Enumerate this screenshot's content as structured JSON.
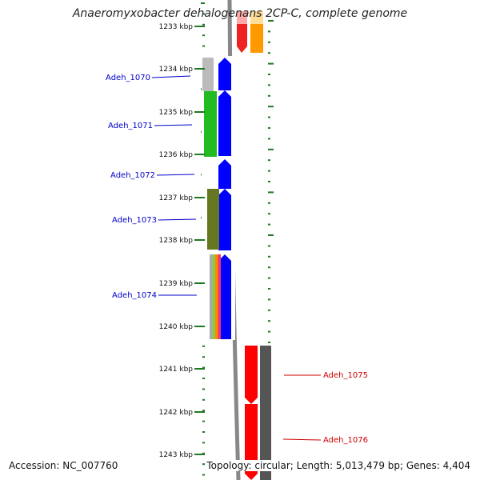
{
  "title": "Anaeromyxobacter dehalogenans 2CP-C, complete genome",
  "accession_text": "Accession: NC_007760",
  "summary_text": "Topology: circular; Length: 5,013,479 bp; Genes: 4,404",
  "kbp_ticks": [
    "1233 kbp",
    "1234 kbp",
    "1235 kbp",
    "1236 kbp",
    "1237 kbp",
    "1238 kbp",
    "1239 kbp",
    "1240 kbp",
    "1241 kbp",
    "1242 kbp",
    "1243 kbp"
  ],
  "colors": {
    "forward_label": "#0000cc",
    "reverse_label": "#cc0000",
    "tick": "#227722",
    "backbone": "#888888",
    "cds_forward": "#0000ff",
    "cds_reverse": "#ff0000"
  },
  "left_labels": [
    "Adeh_1070",
    "Adeh_1071",
    "Adeh_1072",
    "Adeh_1073",
    "Adeh_1074"
  ],
  "right_labels": [
    "Adeh_1075",
    "Adeh_1076"
  ],
  "outer_features": [
    {
      "strand": "forward",
      "colors": [
        "#bbbbbb"
      ]
    },
    {
      "strand": "forward",
      "colors": [
        "#22bb22"
      ]
    },
    {
      "strand": "forward",
      "colors": [
        "#667722"
      ]
    },
    {
      "strand": "forward",
      "colors": [
        "#aaaaaa",
        "#88cc44",
        "#ff8800",
        "#ee3377"
      ]
    },
    {
      "strand": "reverse",
      "colors": [
        "#555555"
      ]
    },
    {
      "strand": "reverse",
      "colors": [
        "#555555"
      ]
    }
  ]
}
